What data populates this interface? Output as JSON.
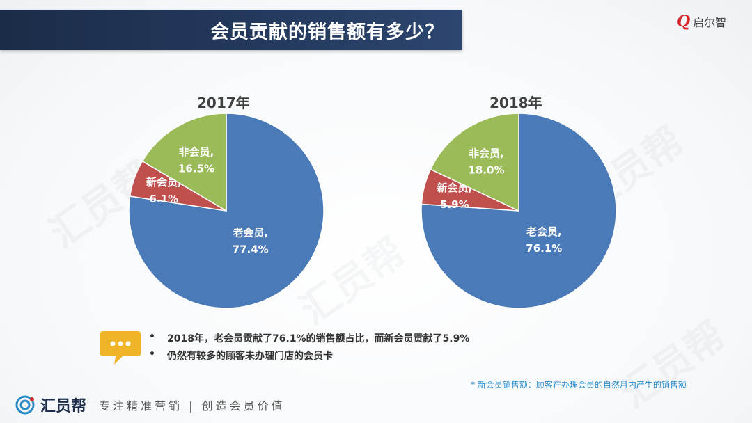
{
  "header": {
    "title": "会员贡献的销售额有多少？"
  },
  "logo": {
    "mark": "Q",
    "text": "启尔智"
  },
  "watermark": {
    "text": "汇员帮"
  },
  "colors": {
    "old_member": "#4a7ab8",
    "new_member": "#c0504d",
    "non_member": "#9bbb59"
  },
  "chart_data": [
    {
      "type": "pie",
      "title": "2017年",
      "slices": [
        {
          "name": "老会员",
          "value": 77.4,
          "label": "77.4%"
        },
        {
          "name": "新会员",
          "value": 6.1,
          "label": "6.1%"
        },
        {
          "name": "非会员",
          "value": 16.5,
          "label": "16.5%"
        }
      ]
    },
    {
      "type": "pie",
      "title": "2018年",
      "slices": [
        {
          "name": "老会员",
          "value": 76.1,
          "label": "76.1%"
        },
        {
          "name": "新会员",
          "value": 5.9,
          "label": "5.9%"
        },
        {
          "name": "非会员",
          "value": 18.0,
          "label": "18.0%"
        }
      ]
    }
  ],
  "notes": {
    "bullet": "•",
    "items": [
      "2018年，老会员贡献了76.1%的销售额占比，而新会员贡献了5.9%",
      "仍然有较多的顾客未办理门店的会员卡"
    ],
    "footnote": "* 新会员销售额：顾客在办理会员的自然月内产生的销售额"
  },
  "brand": {
    "name": "汇员帮",
    "slogan": "专注精准营销 | 创造会员价值"
  }
}
